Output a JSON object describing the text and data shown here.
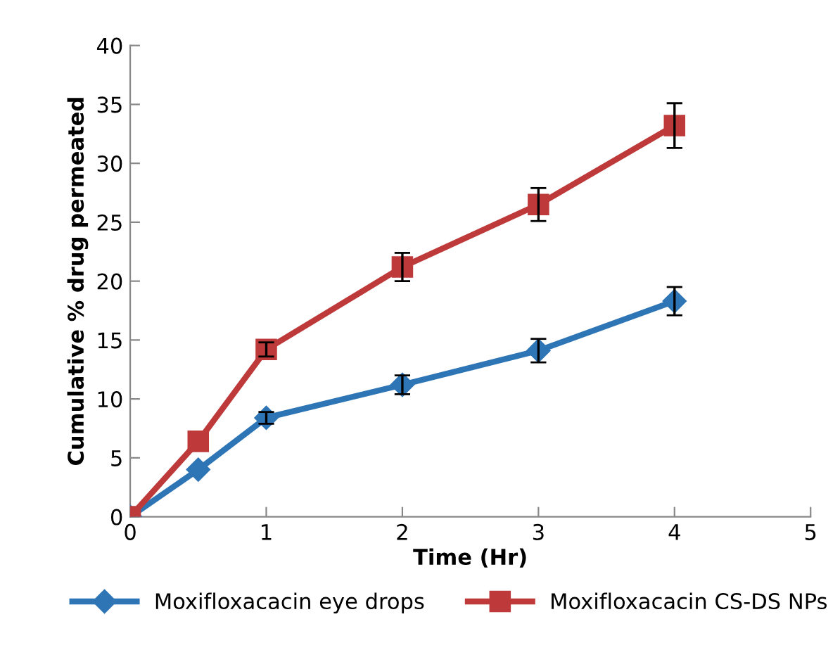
{
  "chart_data": {
    "type": "line",
    "xlabel": "Time (Hr)",
    "ylabel": "Cumulative % drug permeated",
    "x": [
      0,
      0.5,
      1,
      2,
      3,
      4
    ],
    "series": [
      {
        "name": "Moxifloxacacin eye drops",
        "color": "#2e75b6",
        "marker": "diamond",
        "values": [
          0,
          4.0,
          8.4,
          11.2,
          14.1,
          18.3
        ],
        "errors": [
          null,
          null,
          0.5,
          0.8,
          1.0,
          1.2
        ]
      },
      {
        "name": "Moxifloxacacin CS-DS NPs",
        "color": "#be3a3a",
        "marker": "square",
        "values": [
          0,
          6.4,
          14.2,
          21.2,
          26.5,
          33.2
        ],
        "errors": [
          null,
          null,
          0.6,
          1.2,
          1.4,
          1.9
        ]
      }
    ],
    "xlim": [
      0,
      5
    ],
    "xticks": [
      0,
      1,
      2,
      3,
      4,
      5
    ],
    "ylim": [
      0,
      40
    ],
    "yticks": [
      0,
      5,
      10,
      15,
      20,
      25,
      30,
      35,
      40
    ],
    "grid": false,
    "legend": "bottom",
    "line_style": "solid"
  }
}
